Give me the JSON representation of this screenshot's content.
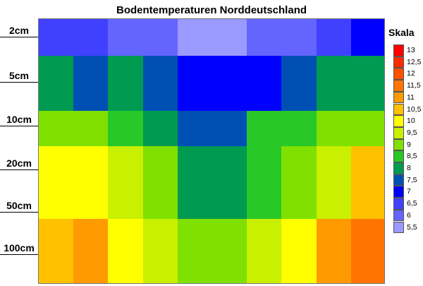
{
  "chart_data": {
    "type": "heatmap",
    "title": "Bodentemperaturen Norddeutschland",
    "legend_title": "Skala",
    "legend_position": "right",
    "depths": [
      "2cm",
      "5cm",
      "10cm",
      "20cm",
      "50cm",
      "100cm"
    ],
    "scale": [
      {
        "label": "13",
        "value": 13,
        "color": "#ff0000"
      },
      {
        "label": "12,5",
        "value": 12.5,
        "color": "#ff2a00"
      },
      {
        "label": "12",
        "value": 12,
        "color": "#ff5000"
      },
      {
        "label": "11,5",
        "value": 11.5,
        "color": "#ff7400"
      },
      {
        "label": "11",
        "value": 11,
        "color": "#ff9a00"
      },
      {
        "label": "10,5",
        "value": 10.5,
        "color": "#ffc000"
      },
      {
        "label": "10",
        "value": 10,
        "color": "#ffff00"
      },
      {
        "label": "9,5",
        "value": 9.5,
        "color": "#c8f000"
      },
      {
        "label": "9",
        "value": 9,
        "color": "#80e000"
      },
      {
        "label": "8,5",
        "value": 8.5,
        "color": "#28c828"
      },
      {
        "label": "8",
        "value": 8,
        "color": "#009a50"
      },
      {
        "label": "7,5",
        "value": 7.5,
        "color": "#0050b4"
      },
      {
        "label": "7",
        "value": 7,
        "color": "#0000ff"
      },
      {
        "label": "6,5",
        "value": 6.5,
        "color": "#4040ff"
      },
      {
        "label": "6",
        "value": 6,
        "color": "#6464ff"
      },
      {
        "label": "5,5",
        "value": 5.5,
        "color": "#9a9aff"
      }
    ],
    "columns": 10,
    "values": [
      [
        6.5,
        6.5,
        6.0,
        6.0,
        5.5,
        5.5,
        6.0,
        6.0,
        6.5,
        7.0
      ],
      [
        8.0,
        7.5,
        8.0,
        7.5,
        7.0,
        7.0,
        7.0,
        7.5,
        8.0,
        8.0
      ],
      [
        9.0,
        9.0,
        8.5,
        8.0,
        7.5,
        7.5,
        8.5,
        8.5,
        9.0,
        9.0
      ],
      [
        10.0,
        10.0,
        9.5,
        9.0,
        8.0,
        8.0,
        8.5,
        9.0,
        9.5,
        10.5
      ],
      [
        10.0,
        10.0,
        9.5,
        9.0,
        8.0,
        8.0,
        8.5,
        9.0,
        9.5,
        10.5
      ],
      [
        10.5,
        11.0,
        10.0,
        9.5,
        9.0,
        9.0,
        9.5,
        10.0,
        11.0,
        11.5
      ]
    ]
  }
}
